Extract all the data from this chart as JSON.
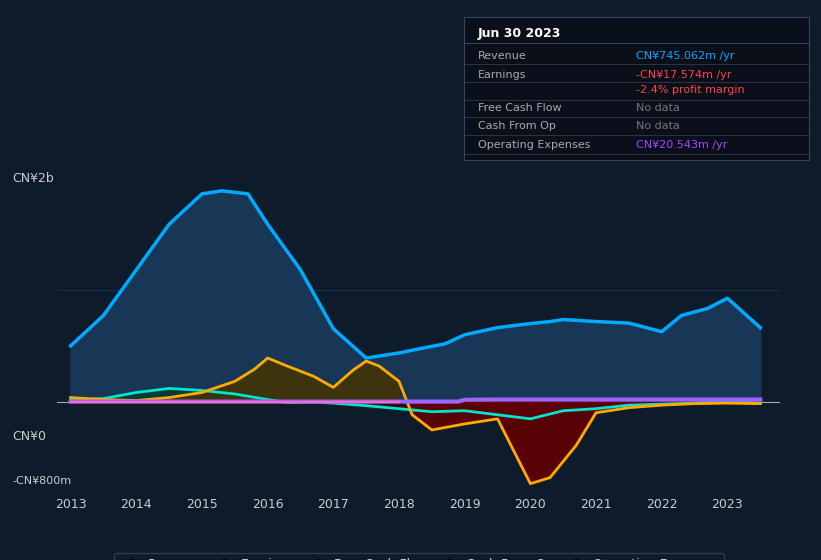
{
  "bg_color": "#0d1b2a",
  "plot_bg_color": "#0d1b2a",
  "title_box": {
    "date": "Jun 30 2023",
    "revenue_label": "Revenue",
    "revenue_value": "CN¥745.062m /yr",
    "revenue_color": "#00aaff",
    "earnings_label": "Earnings",
    "earnings_value": "-CN¥17.574m /yr",
    "earnings_color": "#ff4444",
    "margin_value": "-2.4% profit margin",
    "margin_color": "#ff4444",
    "fcf_label": "Free Cash Flow",
    "fcf_value": "No data",
    "cfop_label": "Cash From Op",
    "cfop_value": "No data",
    "opex_label": "Operating Expenses",
    "opex_value": "CN¥20.543m /yr",
    "opex_color": "#aa44ff"
  },
  "ylabel_top": "CN¥2b",
  "ylabel_bottom": "-CN¥800m",
  "ylabel_zero": "CN¥0",
  "x_years": [
    2013,
    2014,
    2015,
    2016,
    2017,
    2018,
    2019,
    2020,
    2021,
    2022,
    2023
  ],
  "revenue_x": [
    2013,
    2013.5,
    2014,
    2014.5,
    2015,
    2015.3,
    2015.7,
    2016,
    2016.5,
    2017,
    2017.5,
    2018,
    2018.3,
    2018.7,
    2019,
    2019.5,
    2020,
    2020.3,
    2020.5,
    2021,
    2021.5,
    2022,
    2022.3,
    2022.7,
    2023,
    2023.5
  ],
  "revenue_y": [
    550,
    850,
    1300,
    1750,
    2050,
    2080,
    2050,
    1750,
    1300,
    720,
    430,
    480,
    520,
    570,
    660,
    730,
    770,
    790,
    810,
    790,
    775,
    690,
    850,
    920,
    1020,
    730
  ],
  "revenue_color": "#00aaff",
  "revenue_fill": "#1a3a5c",
  "earnings_x": [
    2013,
    2013.5,
    2014,
    2014.5,
    2015,
    2015.5,
    2016,
    2016.3,
    2016.7,
    2017,
    2017.5,
    2018,
    2018.5,
    2019,
    2019.5,
    2020,
    2020.5,
    2021,
    2021.5,
    2022,
    2022.5,
    2023,
    2023.5
  ],
  "earnings_y": [
    15,
    30,
    90,
    130,
    110,
    75,
    20,
    -10,
    -5,
    -15,
    -40,
    -70,
    -100,
    -90,
    -130,
    -170,
    -90,
    -70,
    -35,
    -25,
    -15,
    5,
    -17
  ],
  "earnings_color": "#00e5cc",
  "cop_x": [
    2013,
    2013.5,
    2014,
    2014.5,
    2015,
    2015.5,
    2015.8,
    2016,
    2016.3,
    2016.7,
    2017,
    2017.3,
    2017.5,
    2017.7,
    2018,
    2018.2,
    2018.5,
    2019,
    2019.5,
    2020,
    2020.3,
    2020.7,
    2021,
    2021.5,
    2022,
    2022.5,
    2023,
    2023.5
  ],
  "cop_y": [
    40,
    20,
    10,
    40,
    90,
    200,
    320,
    430,
    350,
    250,
    140,
    310,
    400,
    350,
    200,
    -130,
    -280,
    -220,
    -170,
    -810,
    -750,
    -430,
    -110,
    -60,
    -35,
    -20,
    -15,
    -20
  ],
  "cop_color": "#ffaa00",
  "opex_x": [
    2013,
    2014,
    2015,
    2016,
    2017,
    2018,
    2018.9,
    2019,
    2019.5,
    2020,
    2020.5,
    2021,
    2021.5,
    2022,
    2022.5,
    2023,
    2023.5
  ],
  "opex_y": [
    0,
    0,
    0,
    0,
    0,
    0,
    0,
    18,
    20,
    20,
    20,
    20,
    20,
    20,
    20,
    20,
    20
  ],
  "opex_color": "#9966ff",
  "fcf_color": "#ff69b4",
  "ylim": [
    -900,
    2250
  ],
  "xlim": [
    2012.8,
    2023.8
  ],
  "text_color": "#cccccc",
  "grid_color": "#1e3050"
}
